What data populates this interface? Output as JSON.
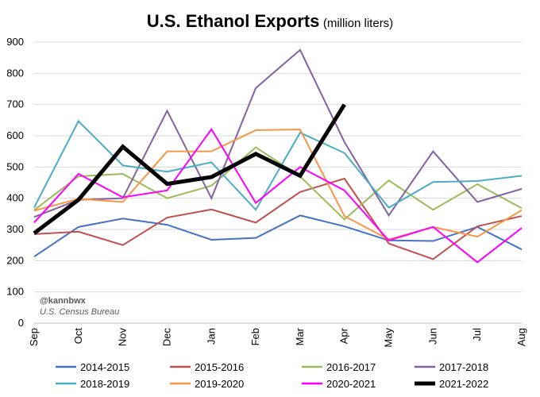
{
  "chart_data": {
    "type": "line",
    "title": "U.S. Ethanol Exports",
    "subtitle": "(million liters)",
    "categories": [
      "Sep",
      "Oct",
      "Nov",
      "Dec",
      "Jan",
      "Feb",
      "Mar",
      "Apr",
      "May",
      "Jun",
      "Jul",
      "Aug"
    ],
    "ylim": [
      0,
      900
    ],
    "yticks": [
      0,
      100,
      200,
      300,
      400,
      500,
      600,
      700,
      800,
      900
    ],
    "grid": true,
    "legend_position": "bottom",
    "series": [
      {
        "name": "2014-2015",
        "color": "#4472C4",
        "width": 2,
        "values": [
          213,
          308,
          335,
          315,
          267,
          273,
          345,
          310,
          265,
          263,
          308,
          236
        ]
      },
      {
        "name": "2015-2016",
        "color": "#C0504D",
        "width": 2,
        "values": [
          285,
          293,
          250,
          338,
          364,
          322,
          420,
          463,
          255,
          205,
          310,
          343
        ]
      },
      {
        "name": "2016-2017",
        "color": "#9BBB59",
        "width": 2,
        "values": [
          362,
          470,
          478,
          400,
          440,
          563,
          470,
          332,
          457,
          363,
          445,
          368
        ]
      },
      {
        "name": "2017-2018",
        "color": "#8064A2",
        "width": 2,
        "values": [
          340,
          395,
          400,
          680,
          400,
          753,
          875,
          580,
          345,
          550,
          388,
          430
        ]
      },
      {
        "name": "2018-2019",
        "color": "#4BACC6",
        "width": 2,
        "values": [
          370,
          647,
          505,
          485,
          515,
          363,
          610,
          545,
          370,
          452,
          455,
          472
        ]
      },
      {
        "name": "2019-2020",
        "color": "#F79646",
        "width": 2,
        "values": [
          360,
          398,
          388,
          550,
          550,
          618,
          620,
          343,
          268,
          308,
          277,
          362
        ]
      },
      {
        "name": "2020-2021",
        "color": "#FF00FF",
        "width": 2,
        "values": [
          322,
          478,
          403,
          425,
          621,
          385,
          500,
          425,
          265,
          308,
          195,
          305
        ]
      },
      {
        "name": "2021-2022",
        "color": "#000000",
        "width": 5,
        "values": [
          288,
          395,
          565,
          446,
          468,
          542,
          472,
          700,
          null,
          null,
          null,
          null
        ]
      }
    ],
    "annotations": [
      "@kannbwx",
      "U.S. Census Bureau"
    ]
  }
}
